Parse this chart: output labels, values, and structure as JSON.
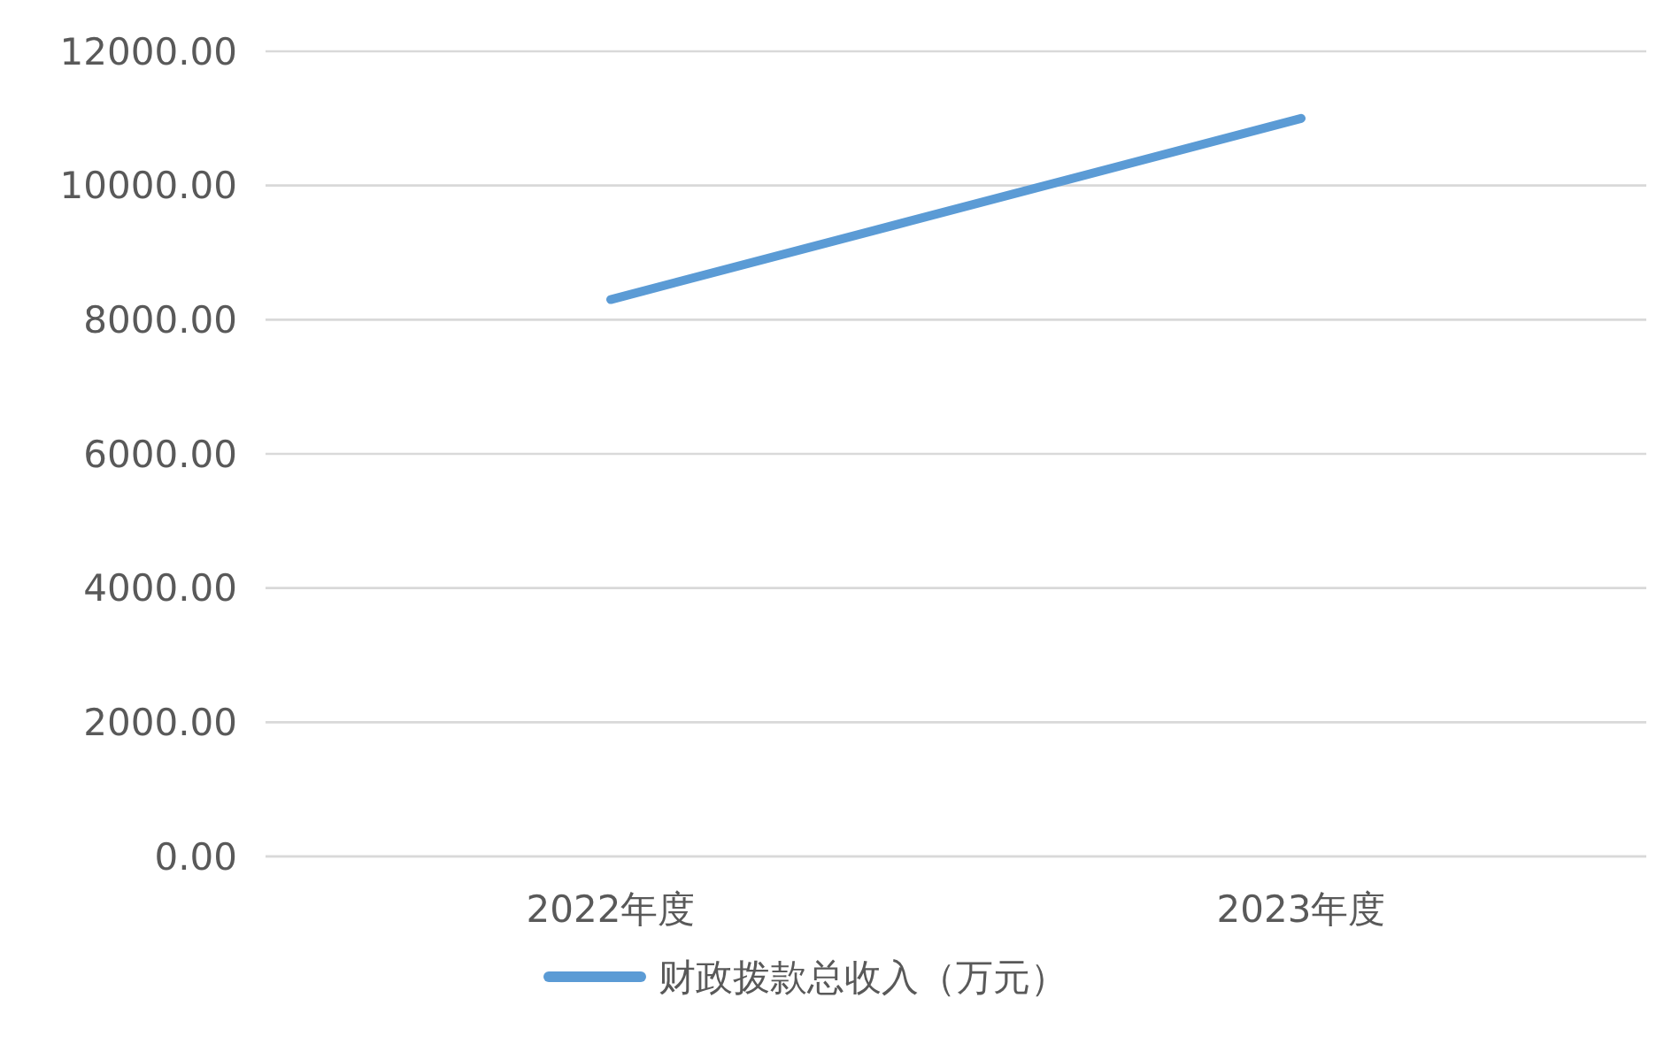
{
  "chart_data": {
    "type": "line",
    "categories": [
      "2022年度",
      "2023年度"
    ],
    "series": [
      {
        "name": "财政拨款总收入（万元）",
        "color": "#5b9bd5",
        "values": [
          8300,
          11000
        ]
      }
    ],
    "ylim": [
      0,
      12000
    ],
    "yticks": [
      {
        "value": 0,
        "label": "0.00"
      },
      {
        "value": 2000,
        "label": "2000.00"
      },
      {
        "value": 4000,
        "label": "4000.00"
      },
      {
        "value": 6000,
        "label": "6000.00"
      },
      {
        "value": 8000,
        "label": "8000.00"
      },
      {
        "value": 10000,
        "label": "10000.00"
      },
      {
        "value": 12000,
        "label": "12000.00"
      }
    ],
    "grid": "y",
    "legend": "bottom",
    "marker": "none",
    "line_style": "solid"
  }
}
